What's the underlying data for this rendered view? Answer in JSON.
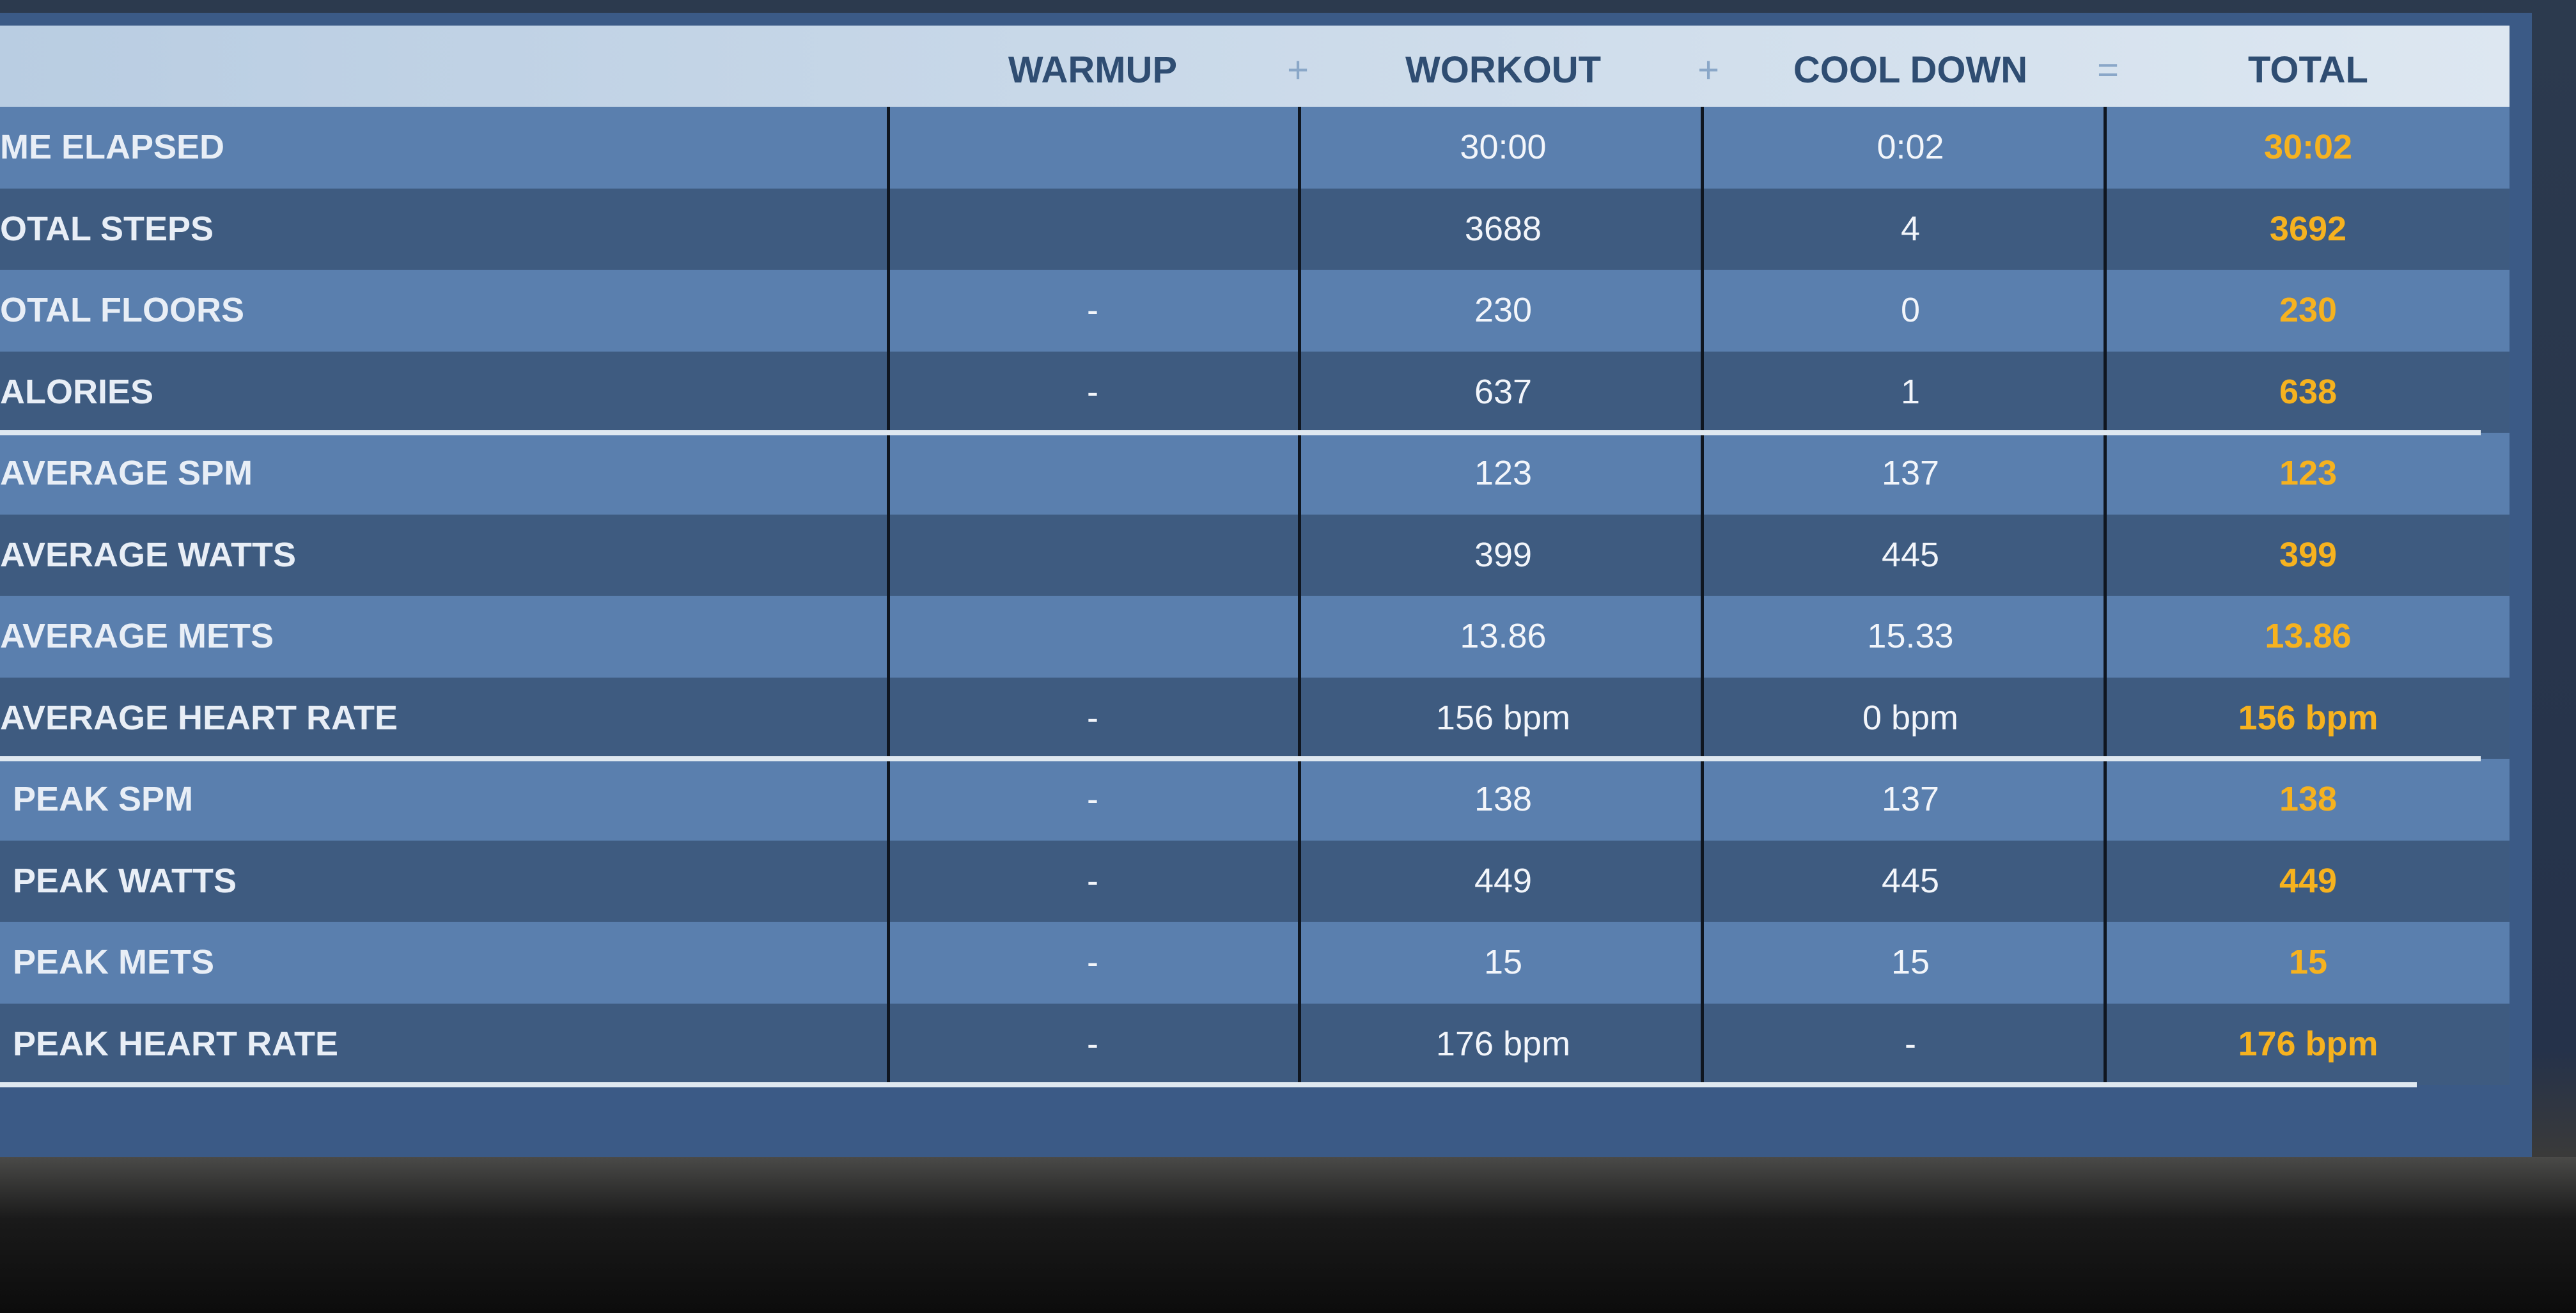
{
  "table": {
    "header": [
      "WARMUP",
      "+",
      "WORKOUT",
      "+",
      "COOL DOWN",
      "=",
      "TOTAL"
    ],
    "rows": [
      {
        "label": "ME ELAPSED",
        "cells": [
          null,
          "30:00",
          "0:02",
          "30:02"
        ]
      },
      {
        "label": "OTAL STEPS",
        "cells": [
          null,
          "3688",
          "4",
          "3692"
        ]
      },
      {
        "label": "OTAL FLOORS",
        "cells": [
          "-",
          "230",
          "0",
          "230"
        ]
      },
      {
        "label": "ALORIES",
        "cells": [
          "-",
          "637",
          "1",
          "638"
        ]
      },
      {
        "label": "AVERAGE SPM",
        "cells": [
          null,
          "123",
          "137",
          "123"
        ]
      },
      {
        "label": "AVERAGE WATTS",
        "cells": [
          null,
          "399",
          "445",
          "399"
        ]
      },
      {
        "label": "AVERAGE METS",
        "cells": [
          null,
          "13.86",
          "15.33",
          "13.86"
        ]
      },
      {
        "label": "AVERAGE HEART RATE",
        "cells": [
          "-",
          "156 bpm",
          "0 bpm",
          "156 bpm"
        ]
      },
      {
        "label": "PEAK SPM",
        "cells": [
          "-",
          "138",
          "137",
          "138"
        ]
      },
      {
        "label": "PEAK WATTS",
        "cells": [
          "-",
          "449",
          "445",
          "449"
        ]
      },
      {
        "label": "PEAK METS",
        "cells": [
          "-",
          "15",
          "15",
          "15"
        ]
      },
      {
        "label": "PEAK HEART RATE",
        "cells": [
          "-",
          "176 bpm",
          "-",
          "176 bpm"
        ]
      }
    ]
  }
}
